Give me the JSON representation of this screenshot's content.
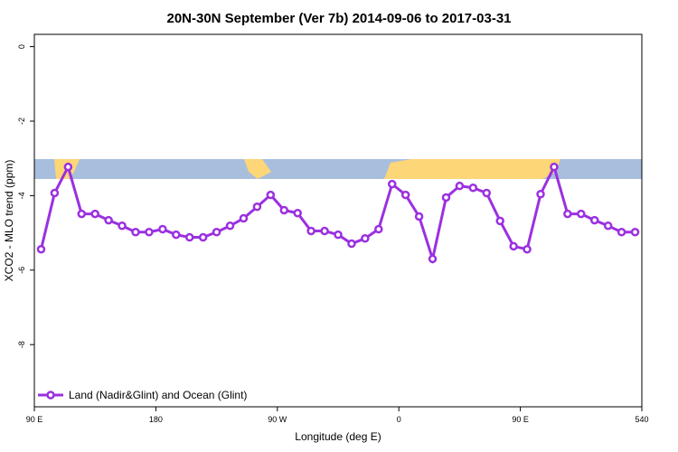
{
  "chart_data": {
    "type": "line",
    "title": "20N-30N September (Ver 7b)   2014-09-06 to 2017-03-31",
    "x_label": "Longitude (deg E)",
    "y_label": "XCO2 - MLO trend (ppm)",
    "x": [
      95,
      105,
      115,
      125,
      135,
      145,
      155,
      165,
      175,
      185,
      195,
      205,
      215,
      225,
      235,
      245,
      255,
      265,
      275,
      285,
      295,
      305,
      315,
      325,
      335,
      345,
      355,
      365,
      375,
      385,
      395,
      405,
      415,
      425,
      435,
      445,
      455,
      465,
      475,
      485,
      495,
      505,
      515,
      525,
      535
    ],
    "series": [
      {
        "name": "Land (Nadir&Glint) and Ocean (Glint)",
        "color": "#9b30e0",
        "values": [
          -5.44,
          -3.93,
          -3.23,
          -4.49,
          -4.49,
          -4.66,
          -4.81,
          -4.98,
          -4.98,
          -4.9,
          -5.05,
          -5.12,
          -5.12,
          -4.98,
          -4.81,
          -4.61,
          -4.3,
          -3.98,
          -4.39,
          -4.47,
          -4.95,
          -4.95,
          -5.05,
          -5.29,
          -5.15,
          -4.9,
          -3.69,
          -3.98,
          -4.56,
          -5.7,
          -4.05,
          -3.74,
          -3.79,
          -3.93,
          -4.68,
          -5.36,
          -5.44,
          -3.96,
          -3.23,
          -4.49,
          -4.49,
          -4.66,
          -4.81,
          -4.98,
          -4.98
        ]
      }
    ],
    "xlim": [
      90,
      540
    ],
    "ylim": [
      -9.67,
      0.33
    ],
    "xticks": [
      {
        "value": 90,
        "label": "90 E"
      },
      180,
      {
        "value": 270,
        "label": "90 W"
      },
      {
        "value": 360,
        "label": "0"
      },
      {
        "value": 450,
        "label": "90 E"
      },
      540
    ],
    "yticks": [
      0,
      -2,
      -4,
      -6,
      -8
    ],
    "legend_position": "bottom-left"
  }
}
